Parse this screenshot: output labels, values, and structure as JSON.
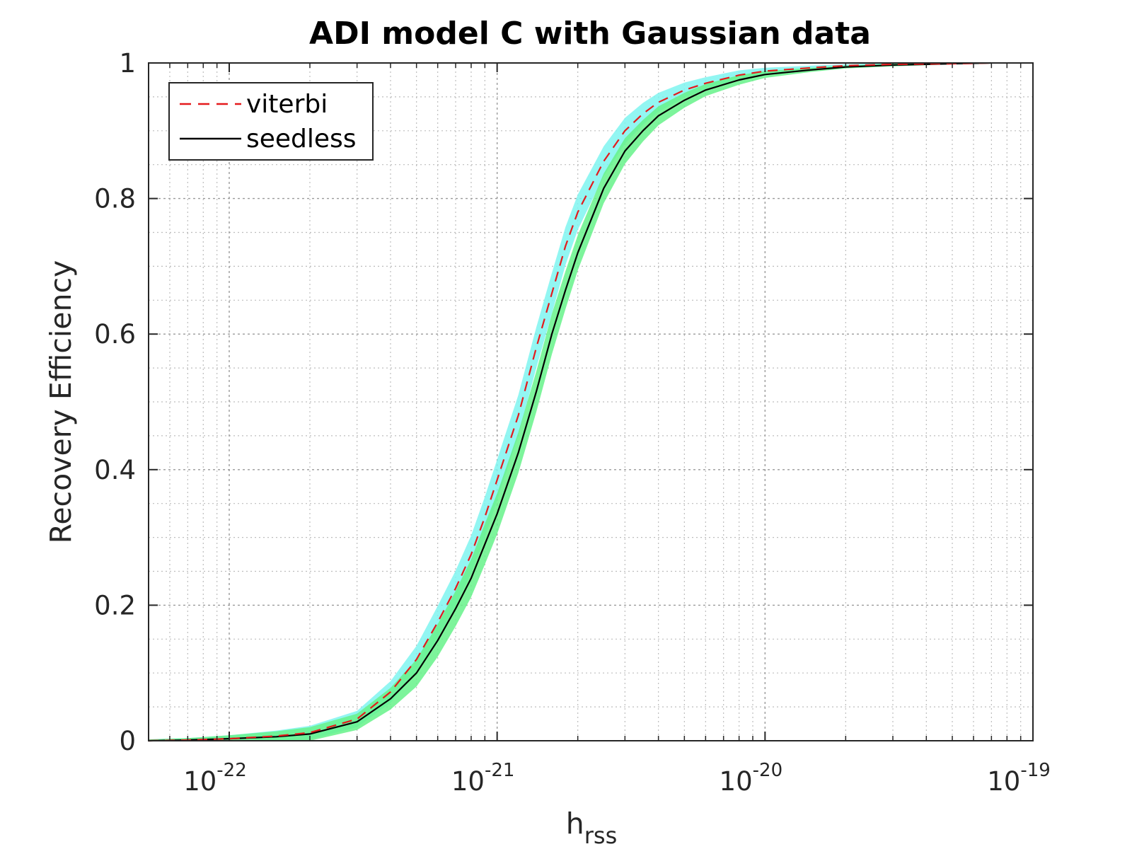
{
  "chart_data": {
    "type": "line",
    "title": "ADI model C with Gaussian data",
    "xlabel": {
      "base": "h",
      "subscript": "rss"
    },
    "ylabel": "Recovery Efficiency",
    "xscale": "log",
    "xlim": [
      5e-23,
      1e-19
    ],
    "ylim": [
      0,
      1
    ],
    "grid": true,
    "minor_grid": true,
    "legend_position": "top-left",
    "x_ticks": [
      {
        "value": 1e-22,
        "base": "10",
        "exp": "-22"
      },
      {
        "value": 1e-21,
        "base": "10",
        "exp": "-21"
      },
      {
        "value": 1e-20,
        "base": "10",
        "exp": "-20"
      },
      {
        "value": 1e-19,
        "base": "10",
        "exp": "-19"
      }
    ],
    "y_ticks": [
      {
        "value": 0,
        "label": "0"
      },
      {
        "value": 0.2,
        "label": "0.2"
      },
      {
        "value": 0.4,
        "label": "0.4"
      },
      {
        "value": 0.6,
        "label": "0.6"
      },
      {
        "value": 0.8,
        "label": "0.8"
      },
      {
        "value": 1,
        "label": "1"
      }
    ],
    "x": [
      5e-23,
      7e-23,
      1e-22,
      1.5e-22,
      2e-22,
      3e-22,
      4e-22,
      5e-22,
      6e-22,
      7e-22,
      8e-22,
      9e-22,
      1e-21,
      1.2e-21,
      1.4e-21,
      1.6e-21,
      1.8e-21,
      2e-21,
      2.5e-21,
      3e-21,
      3.5e-21,
      4e-21,
      5e-21,
      6e-21,
      8e-21,
      1e-20,
      1.5e-20,
      2e-20,
      3e-20,
      5e-20,
      7e-20
    ],
    "series": [
      {
        "name": "viterbi",
        "style": "dashed",
        "color": "#e41a1c",
        "values": [
          0.0,
          0.001,
          0.003,
          0.007,
          0.012,
          0.032,
          0.072,
          0.12,
          0.175,
          0.225,
          0.275,
          0.33,
          0.385,
          0.48,
          0.58,
          0.66,
          0.73,
          0.78,
          0.855,
          0.9,
          0.925,
          0.942,
          0.96,
          0.97,
          0.982,
          0.988,
          0.993,
          0.996,
          0.998,
          0.999,
          1.0
        ],
        "band_color": "#7ff5f0",
        "band_halfwidth": [
          0.002,
          0.003,
          0.005,
          0.008,
          0.01,
          0.012,
          0.016,
          0.02,
          0.024,
          0.026,
          0.028,
          0.03,
          0.03,
          0.03,
          0.03,
          0.03,
          0.028,
          0.026,
          0.022,
          0.019,
          0.016,
          0.014,
          0.011,
          0.009,
          0.007,
          0.005,
          0.003,
          0.002,
          0.002,
          0.001,
          0.001
        ]
      },
      {
        "name": "seedless",
        "style": "solid",
        "color": "#000000",
        "values": [
          0.0,
          0.001,
          0.003,
          0.006,
          0.01,
          0.028,
          0.062,
          0.1,
          0.148,
          0.195,
          0.24,
          0.29,
          0.335,
          0.425,
          0.515,
          0.6,
          0.665,
          0.72,
          0.815,
          0.87,
          0.9,
          0.922,
          0.945,
          0.96,
          0.975,
          0.983,
          0.99,
          0.994,
          0.997,
          0.999,
          1.0
        ],
        "band_color": "#66f28a",
        "band_halfwidth": [
          0.002,
          0.003,
          0.005,
          0.008,
          0.01,
          0.012,
          0.016,
          0.02,
          0.024,
          0.026,
          0.028,
          0.03,
          0.03,
          0.03,
          0.03,
          0.03,
          0.028,
          0.026,
          0.022,
          0.019,
          0.016,
          0.014,
          0.011,
          0.009,
          0.007,
          0.005,
          0.003,
          0.002,
          0.002,
          0.001,
          0.001
        ]
      }
    ]
  }
}
